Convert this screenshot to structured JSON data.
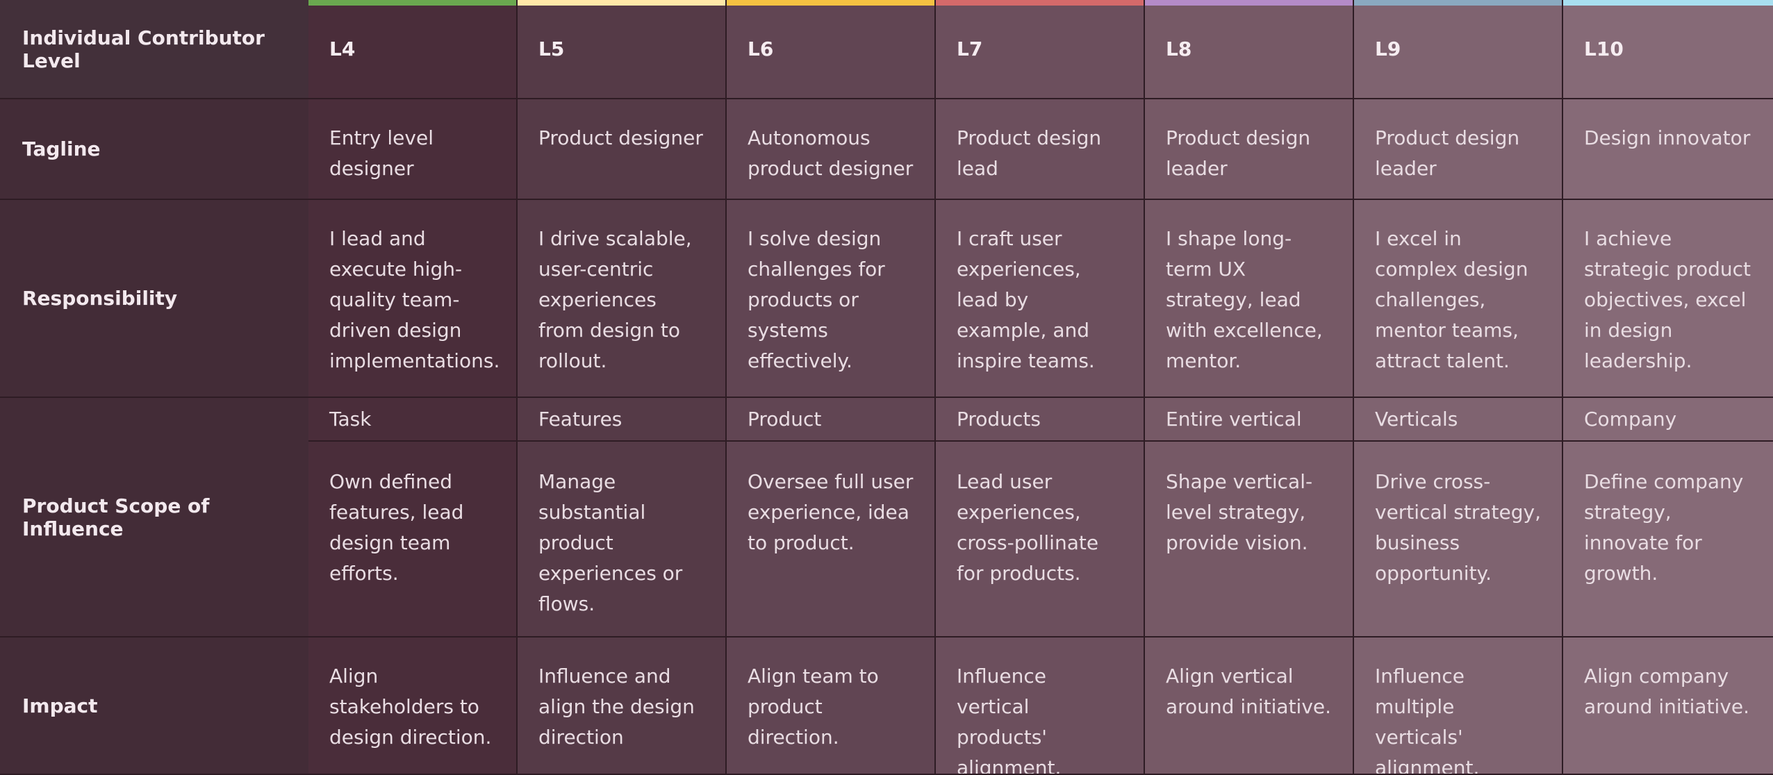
{
  "header_label": "Individual Contributor Level",
  "row_labels": {
    "tagline": "Tagline",
    "responsibility": "Responsibility",
    "scope": "Product Scope of Influence",
    "impact": "Impact"
  },
  "accent_colors": [
    "#6aa84f",
    "#ffe8a8",
    "#f5c242",
    "#d46a6a",
    "#b48bc8",
    "#8aa9c0",
    "#a8dff0"
  ],
  "levels": [
    {
      "name": "L4",
      "tagline": "Entry level designer",
      "responsibility": "I lead and execute high-quality team-driven design implementations.",
      "scope": "Task",
      "scope_desc": "Own defined features, lead design team efforts.",
      "impact": "Align stakeholders to design direction."
    },
    {
      "name": "L5",
      "tagline": "Product designer",
      "responsibility": "I drive scalable, user-centric experiences from design to rollout.",
      "scope": "Features",
      "scope_desc": "Manage substantial product experiences or flows.",
      "impact": "Influence and align the design direction"
    },
    {
      "name": "L6",
      "tagline": "Autonomous product designer",
      "responsibility": "I solve design challenges for products or systems effectively.",
      "scope": "Product",
      "scope_desc": "Oversee full user experience, idea to product.",
      "impact": "Align team to product direction."
    },
    {
      "name": "L7",
      "tagline": "Product design lead",
      "responsibility": "I craft user experiences, lead by example, and inspire teams.",
      "scope": "Products",
      "scope_desc": "Lead user experiences, cross-pollinate for products.",
      "impact": "Influence vertical products' alignment."
    },
    {
      "name": "L8",
      "tagline": "Product design leader",
      "responsibility": "I shape long-term UX strategy, lead with excellence, mentor.",
      "scope": "Entire vertical",
      "scope_desc": "Shape vertical-level strategy, provide vision.",
      "impact": "Align vertical around initiative."
    },
    {
      "name": "L9",
      "tagline": "Product design leader",
      "responsibility": "I excel in complex design challenges, mentor teams, attract talent.",
      "scope": "Verticals",
      "scope_desc": "Drive cross-vertical strategy, business opportunity.",
      "impact": "Influence multiple verticals' alignment."
    },
    {
      "name": "L10",
      "tagline": "Design innovator",
      "responsibility": "I achieve strategic product objectives, excel in design leadership.",
      "scope": "Company",
      "scope_desc": "Define company strategy, innovate for growth.",
      "impact": "Align company around initiative."
    }
  ]
}
